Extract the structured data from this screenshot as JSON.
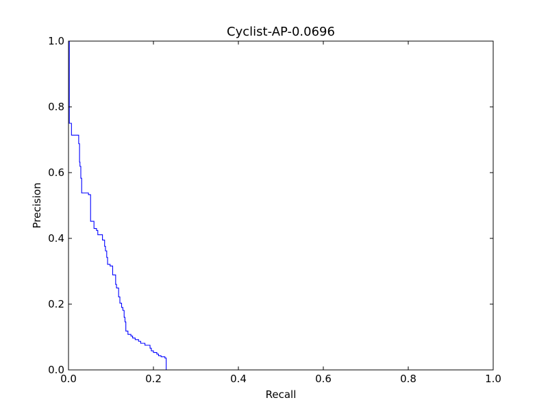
{
  "chart_data": {
    "type": "line",
    "title": "Cyclist-AP-0.0696",
    "xlabel": "Recall",
    "ylabel": "Precision",
    "xlim": [
      0.0,
      1.0
    ],
    "ylim": [
      0.0,
      1.0
    ],
    "xticks": [
      "0.0",
      "0.2",
      "0.4",
      "0.6",
      "0.8",
      "1.0"
    ],
    "yticks": [
      "0.0",
      "0.2",
      "0.4",
      "0.6",
      "0.8",
      "1.0"
    ],
    "grid": false,
    "line_color": "#0000ff",
    "series": [
      {
        "points": [
          [
            0.0,
            1.0
          ],
          [
            0.002,
            1.0
          ],
          [
            0.002,
            0.75
          ],
          [
            0.007,
            0.75
          ],
          [
            0.007,
            0.714
          ],
          [
            0.024,
            0.714
          ],
          [
            0.024,
            0.688
          ],
          [
            0.026,
            0.688
          ],
          [
            0.026,
            0.632
          ],
          [
            0.027,
            0.632
          ],
          [
            0.027,
            0.619
          ],
          [
            0.029,
            0.619
          ],
          [
            0.029,
            0.583
          ],
          [
            0.031,
            0.583
          ],
          [
            0.031,
            0.538
          ],
          [
            0.047,
            0.538
          ],
          [
            0.047,
            0.533
          ],
          [
            0.052,
            0.533
          ],
          [
            0.052,
            0.452
          ],
          [
            0.06,
            0.452
          ],
          [
            0.06,
            0.43
          ],
          [
            0.066,
            0.43
          ],
          [
            0.066,
            0.424
          ],
          [
            0.069,
            0.424
          ],
          [
            0.069,
            0.411
          ],
          [
            0.08,
            0.411
          ],
          [
            0.08,
            0.395
          ],
          [
            0.085,
            0.395
          ],
          [
            0.085,
            0.376
          ],
          [
            0.087,
            0.376
          ],
          [
            0.087,
            0.362
          ],
          [
            0.09,
            0.362
          ],
          [
            0.09,
            0.342
          ],
          [
            0.092,
            0.342
          ],
          [
            0.092,
            0.321
          ],
          [
            0.098,
            0.321
          ],
          [
            0.098,
            0.316
          ],
          [
            0.104,
            0.316
          ],
          [
            0.104,
            0.289
          ],
          [
            0.111,
            0.289
          ],
          [
            0.111,
            0.26
          ],
          [
            0.113,
            0.26
          ],
          [
            0.113,
            0.249
          ],
          [
            0.118,
            0.249
          ],
          [
            0.118,
            0.222
          ],
          [
            0.121,
            0.222
          ],
          [
            0.121,
            0.203
          ],
          [
            0.125,
            0.203
          ],
          [
            0.125,
            0.19
          ],
          [
            0.128,
            0.19
          ],
          [
            0.128,
            0.181
          ],
          [
            0.131,
            0.181
          ],
          [
            0.131,
            0.16
          ],
          [
            0.133,
            0.16
          ],
          [
            0.133,
            0.146
          ],
          [
            0.135,
            0.146
          ],
          [
            0.135,
            0.118
          ],
          [
            0.14,
            0.118
          ],
          [
            0.14,
            0.108
          ],
          [
            0.147,
            0.108
          ],
          [
            0.147,
            0.103
          ],
          [
            0.151,
            0.103
          ],
          [
            0.151,
            0.097
          ],
          [
            0.157,
            0.097
          ],
          [
            0.157,
            0.092
          ],
          [
            0.165,
            0.092
          ],
          [
            0.165,
            0.087
          ],
          [
            0.17,
            0.087
          ],
          [
            0.17,
            0.081
          ],
          [
            0.18,
            0.081
          ],
          [
            0.18,
            0.075
          ],
          [
            0.192,
            0.075
          ],
          [
            0.192,
            0.066
          ],
          [
            0.195,
            0.066
          ],
          [
            0.195,
            0.058
          ],
          [
            0.2,
            0.058
          ],
          [
            0.2,
            0.053
          ],
          [
            0.208,
            0.053
          ],
          [
            0.208,
            0.048
          ],
          [
            0.212,
            0.048
          ],
          [
            0.212,
            0.043
          ],
          [
            0.218,
            0.043
          ],
          [
            0.218,
            0.04
          ],
          [
            0.227,
            0.04
          ],
          [
            0.227,
            0.036
          ],
          [
            0.23,
            0.036
          ],
          [
            0.23,
            0.0
          ],
          [
            1.0,
            0.0
          ]
        ]
      }
    ]
  }
}
